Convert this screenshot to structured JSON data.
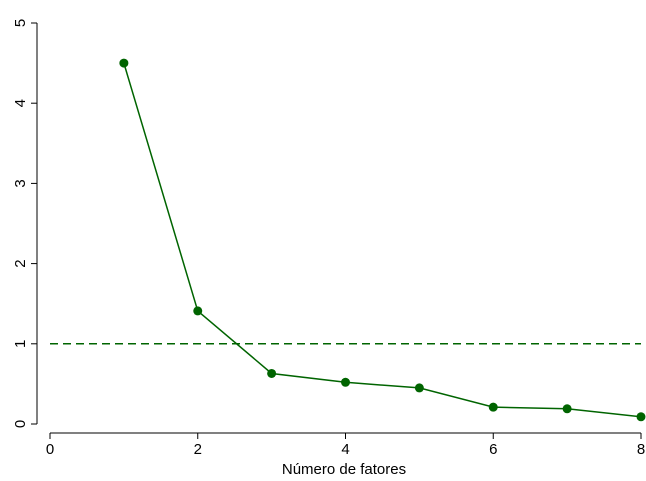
{
  "chart_data": {
    "type": "line",
    "title": "",
    "xlabel": "Número de fatores",
    "ylabel": "",
    "xlim": [
      0,
      8
    ],
    "ylim": [
      0,
      5
    ],
    "x_ticks": [
      0,
      2,
      4,
      6,
      8
    ],
    "y_ticks": [
      0,
      1,
      2,
      3,
      4,
      5
    ],
    "grid": false,
    "series": [
      {
        "color": "#006400",
        "x": [
          1,
          2,
          3,
          4,
          5,
          6,
          7,
          8
        ],
        "values": [
          4.5,
          1.41,
          0.63,
          0.52,
          0.45,
          0.21,
          0.19,
          0.09
        ]
      }
    ],
    "reference_lines": [
      {
        "orientation": "horizontal",
        "y": 1,
        "style": "dashed",
        "color": "#006400"
      }
    ]
  }
}
